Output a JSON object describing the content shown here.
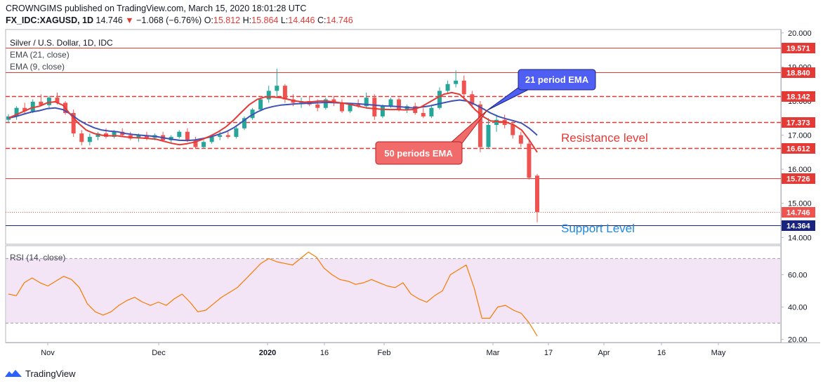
{
  "header": {
    "published_line": "CROWNGIMS published on TradingView.com, March 15, 2020 18:01:28 UTC",
    "symbol": "FX_IDC:XAGUSD, 1D",
    "last": "14.746",
    "change": "−1.068 (−6.76%)",
    "o_label": "O:",
    "o_value": "15.812",
    "h_label": "H:",
    "h_value": "15.864",
    "l_label": "L:",
    "l_value": "14.446",
    "c_label": "C:",
    "c_value": "14.746"
  },
  "legend": {
    "title": "Silver / U.S. Dollar, 1D, IDC",
    "ema21": "EMA (21, close)",
    "ema9": "EMA (9, close)",
    "rsi": "RSI (14, close)"
  },
  "annotations": {
    "ema21_callout": "21 period EMA",
    "ema50_callout": "50 periods EMA",
    "resistance": "Resistance level",
    "support": "Support Level"
  },
  "footer": {
    "brand": "TradingView"
  },
  "colors": {
    "up": "#26a69a",
    "down": "#ef5350",
    "ema_red": "#e53935",
    "ema_blue": "#3f51b5",
    "level_red": "#e53935",
    "support_blue": "#1a237e",
    "rsi_line": "#f57c00",
    "rsi_band": "#f3e5f5",
    "callout_blue": "#4f5ef3",
    "callout_red": "#f26b6b"
  },
  "chart_data": [
    {
      "type": "candlestick",
      "title": "Silver / U.S. Dollar, 1D, IDC",
      "x_tick_labels": [
        "Nov",
        "Dec",
        "2020",
        "16",
        "Feb",
        "Mar",
        "17",
        "Apr",
        "16",
        "May"
      ],
      "y_tick_labels": [
        "14.000",
        "15.000",
        "16.000",
        "17.000",
        "18.000",
        "19.000",
        "20.000"
      ],
      "ylim": [
        13.8,
        20.1
      ],
      "price_levels": [
        {
          "value": 19.571,
          "label": "19.571",
          "style": "solid"
        },
        {
          "value": 18.84,
          "label": "18.840",
          "style": "solid"
        },
        {
          "value": 18.142,
          "label": "18.142",
          "style": "dashed"
        },
        {
          "value": 17.373,
          "label": "17.373",
          "style": "dashed"
        },
        {
          "value": 16.612,
          "label": "16.612",
          "style": "dashed"
        },
        {
          "value": 15.726,
          "label": "15.726",
          "style": "solid"
        },
        {
          "value": 14.746,
          "label": "14.746",
          "style": "dotted"
        },
        {
          "value": 14.364,
          "label": "14.364",
          "style": "solid-blue"
        }
      ],
      "series": [
        {
          "name": "EMA (21, close)",
          "values": [
            17.5,
            17.55,
            17.62,
            17.68,
            17.72,
            17.78,
            17.8,
            17.75,
            17.62,
            17.45,
            17.32,
            17.22,
            17.15,
            17.12,
            17.1,
            17.05,
            17.02,
            17.0,
            16.98,
            16.96,
            16.92,
            16.88,
            16.85,
            16.84,
            16.86,
            16.9,
            16.95,
            17.02,
            17.1,
            17.22,
            17.38,
            17.55,
            17.68,
            17.78,
            17.84,
            17.88,
            17.9,
            17.92,
            17.93,
            17.94,
            17.95,
            17.96,
            17.95,
            17.94,
            17.93,
            17.92,
            17.9,
            17.88,
            17.86,
            17.85,
            17.84,
            17.82,
            17.8,
            17.82,
            17.85,
            17.9,
            17.95,
            18.0,
            18.03,
            18.0,
            17.9,
            17.78,
            17.65,
            17.55,
            17.48,
            17.42,
            17.35,
            17.2,
            17.0
          ]
        },
        {
          "name": "EMA (9, close)",
          "values": [
            17.5,
            17.6,
            17.7,
            17.8,
            17.85,
            17.95,
            17.98,
            17.88,
            17.6,
            17.35,
            17.15,
            17.05,
            17.0,
            16.98,
            16.98,
            16.95,
            16.93,
            16.92,
            16.9,
            16.88,
            16.82,
            16.76,
            16.72,
            16.75,
            16.8,
            16.88,
            16.98,
            17.1,
            17.25,
            17.45,
            17.68,
            17.9,
            18.05,
            18.12,
            18.12,
            18.1,
            18.05,
            18.0,
            17.97,
            17.98,
            18.0,
            18.0,
            17.97,
            17.94,
            17.9,
            17.85,
            17.8,
            17.78,
            17.76,
            17.75,
            17.75,
            17.74,
            17.75,
            17.82,
            17.95,
            18.08,
            18.2,
            18.25,
            18.2,
            18.0,
            17.75,
            17.55,
            17.42,
            17.4,
            17.38,
            17.3,
            17.15,
            16.85,
            16.5
          ]
        }
      ],
      "ohlc_approx": [
        [
          17.45,
          17.62,
          17.35,
          17.55
        ],
        [
          17.55,
          17.85,
          17.45,
          17.8
        ],
        [
          17.8,
          17.95,
          17.6,
          17.7
        ],
        [
          17.7,
          18.05,
          17.65,
          17.98
        ],
        [
          17.98,
          18.2,
          17.85,
          17.88
        ],
        [
          17.88,
          18.15,
          17.8,
          18.1
        ],
        [
          18.1,
          18.25,
          17.9,
          17.95
        ],
        [
          17.95,
          18.0,
          17.6,
          17.65
        ],
        [
          17.65,
          17.75,
          16.95,
          17.05
        ],
        [
          17.05,
          17.15,
          16.7,
          16.8
        ],
        [
          16.8,
          17.05,
          16.7,
          16.95
        ],
        [
          16.95,
          17.1,
          16.85,
          17.05
        ],
        [
          17.05,
          17.2,
          16.9,
          16.95
        ],
        [
          16.95,
          17.15,
          16.9,
          17.1
        ],
        [
          17.1,
          17.2,
          16.95,
          17.0
        ],
        [
          17.0,
          17.1,
          16.85,
          16.9
        ],
        [
          16.9,
          17.05,
          16.8,
          17.0
        ],
        [
          17.0,
          17.1,
          16.85,
          16.92
        ],
        [
          16.92,
          17.05,
          16.85,
          17.0
        ],
        [
          17.0,
          17.1,
          16.8,
          16.85
        ],
        [
          16.85,
          17.0,
          16.75,
          16.95
        ],
        [
          16.95,
          17.15,
          16.9,
          17.1
        ],
        [
          17.1,
          17.2,
          16.8,
          16.85
        ],
        [
          16.85,
          16.95,
          16.6,
          16.65
        ],
        [
          16.65,
          16.85,
          16.6,
          16.8
        ],
        [
          16.8,
          17.0,
          16.75,
          16.95
        ],
        [
          16.95,
          17.1,
          16.85,
          17.0
        ],
        [
          17.0,
          17.1,
          16.9,
          16.95
        ],
        [
          16.95,
          17.25,
          16.9,
          17.2
        ],
        [
          17.2,
          17.55,
          17.15,
          17.5
        ],
        [
          17.5,
          17.8,
          17.45,
          17.75
        ],
        [
          17.75,
          18.1,
          17.7,
          18.05
        ],
        [
          18.05,
          18.45,
          17.95,
          18.3
        ],
        [
          18.3,
          18.95,
          18.1,
          18.45
        ],
        [
          18.45,
          18.5,
          17.95,
          18.05
        ],
        [
          18.05,
          18.2,
          17.85,
          17.95
        ],
        [
          17.95,
          18.1,
          17.8,
          18.0
        ],
        [
          18.0,
          18.15,
          17.85,
          17.9
        ],
        [
          17.9,
          18.05,
          17.7,
          17.8
        ],
        [
          17.8,
          18.1,
          17.75,
          18.05
        ],
        [
          18.05,
          18.15,
          17.85,
          17.95
        ],
        [
          17.95,
          18.05,
          17.65,
          17.7
        ],
        [
          17.7,
          17.95,
          17.65,
          17.9
        ],
        [
          17.9,
          18.05,
          17.8,
          17.85
        ],
        [
          17.85,
          18.25,
          17.8,
          18.1
        ],
        [
          18.1,
          18.2,
          17.45,
          17.55
        ],
        [
          17.55,
          17.9,
          17.5,
          17.85
        ],
        [
          17.85,
          18.1,
          17.8,
          18.05
        ],
        [
          18.05,
          18.1,
          17.7,
          17.75
        ],
        [
          17.75,
          17.9,
          17.65,
          17.85
        ],
        [
          17.85,
          17.95,
          17.6,
          17.65
        ],
        [
          17.65,
          17.8,
          17.5,
          17.55
        ],
        [
          17.55,
          17.85,
          17.5,
          17.8
        ],
        [
          17.8,
          18.4,
          17.75,
          18.3
        ],
        [
          18.3,
          18.6,
          18.2,
          18.5
        ],
        [
          18.5,
          18.9,
          18.4,
          18.6
        ],
        [
          18.6,
          18.75,
          18.0,
          18.2
        ],
        [
          18.2,
          18.3,
          17.8,
          17.9
        ],
        [
          17.9,
          18.0,
          16.5,
          16.65
        ],
        [
          16.65,
          17.5,
          16.6,
          17.3
        ],
        [
          17.3,
          17.6,
          17.1,
          17.45
        ],
        [
          17.45,
          17.6,
          17.2,
          17.3
        ],
        [
          17.3,
          17.4,
          16.9,
          17.0
        ],
        [
          17.0,
          17.1,
          16.65,
          16.75
        ],
        [
          16.75,
          16.85,
          15.7,
          15.75
        ],
        [
          15.812,
          15.864,
          14.446,
          14.746
        ]
      ]
    },
    {
      "type": "line",
      "title": "RSI (14, close)",
      "y_tick_labels": [
        "20.00",
        "40.00",
        "60.00"
      ],
      "ylim": [
        18,
        78
      ],
      "bands": [
        30,
        70
      ],
      "series": [
        {
          "name": "RSI (14, close)",
          "values": [
            48,
            47,
            55,
            58,
            55,
            53,
            56,
            59,
            57,
            52,
            42,
            37,
            35,
            37,
            41,
            44,
            46,
            43,
            41,
            43,
            41,
            45,
            48,
            43,
            37,
            38,
            42,
            46,
            49,
            52,
            57,
            62,
            67,
            70,
            68,
            67,
            66,
            70,
            74,
            71,
            64,
            60,
            57,
            56,
            54,
            55,
            57,
            55,
            53,
            52,
            55,
            48,
            45,
            43,
            47,
            50,
            60,
            63,
            66,
            52,
            33,
            33,
            40,
            41,
            38,
            36,
            30,
            22
          ]
        }
      ]
    }
  ]
}
